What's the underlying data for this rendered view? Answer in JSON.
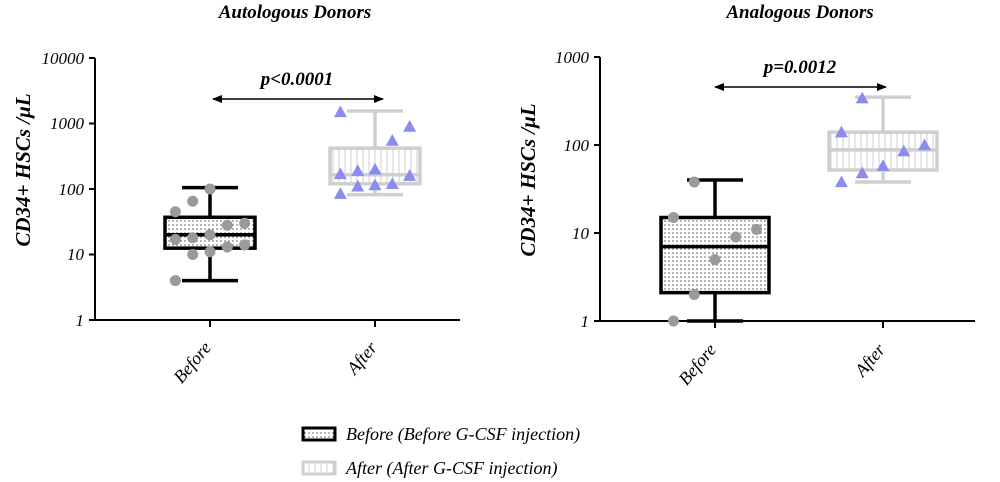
{
  "legend": {
    "before_label": "Before (Before G-CSF injection)",
    "after_label": "After (After G-CSF injection)",
    "placement": "bottom-center"
  },
  "colors": {
    "before": "#000000",
    "before_points": "#9a9a9a",
    "after": "#cfcfcf",
    "after_points": "#8c8cee"
  },
  "chart_data": [
    {
      "type": "box",
      "title": "Autologous Donors",
      "ylabel": "CD34+ HSCs /μL",
      "yscale": "log",
      "ylim": [
        1,
        10000
      ],
      "yticks": [
        "1",
        "10",
        "100",
        "1000",
        "10000"
      ],
      "categories": [
        "Before",
        "After"
      ],
      "pvalue": "p<0.0001",
      "boxes": [
        {
          "name": "Before",
          "min": 4,
          "q1": 12.5,
          "median": 20,
          "q3": 37,
          "max": 105
        },
        {
          "name": "After",
          "min": 82,
          "q1": 120,
          "median": 165,
          "q3": 420,
          "max": 1550
        }
      ],
      "points": [
        [
          4,
          10,
          11,
          13,
          14,
          17,
          18,
          20,
          28,
          30,
          45,
          65,
          100
        ],
        [
          85,
          110,
          115,
          120,
          160,
          170,
          190,
          200,
          550,
          900,
          1500
        ]
      ]
    },
    {
      "type": "box",
      "title": "Analogous Donors",
      "ylabel": "CD34+ HSCs /μL",
      "yscale": "log",
      "ylim": [
        1,
        1000
      ],
      "yticks": [
        "1",
        "10",
        "100",
        "1000"
      ],
      "categories": [
        "Before",
        "After"
      ],
      "pvalue": "p=0.0012",
      "boxes": [
        {
          "name": "Before",
          "min": 1,
          "q1": 2.1,
          "median": 7,
          "q3": 15,
          "max": 40
        },
        {
          "name": "After",
          "min": 38,
          "q1": 52,
          "median": 88,
          "q3": 140,
          "max": 350
        }
      ],
      "points": [
        [
          1,
          2,
          5,
          9,
          11,
          15,
          38
        ],
        [
          38,
          48,
          58,
          85,
          100,
          140,
          340
        ]
      ]
    }
  ]
}
